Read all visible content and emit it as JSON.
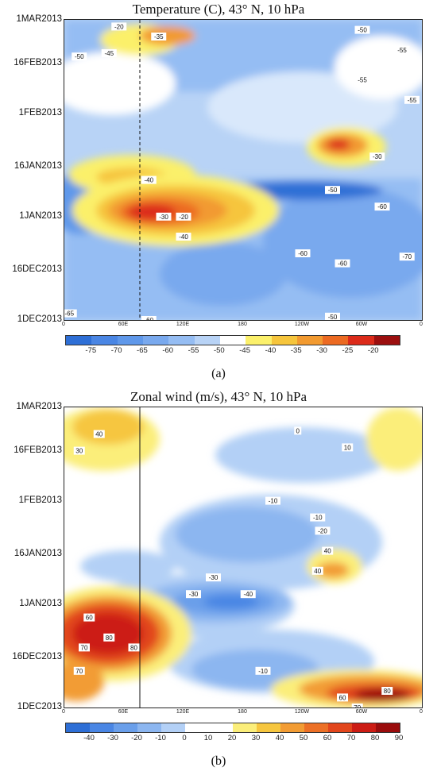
{
  "chart_data": [
    {
      "type": "heatmap",
      "title": "Temperature (C), 43° N, 10 hPa",
      "panel_label": "(a)",
      "y_tick_labels": [
        "1MAR2013",
        "16FEB2013",
        "1FEB2013",
        "16JAN2013",
        "1JAN2013",
        "16DEC2013",
        "1DEC2013"
      ],
      "x_tick_labels": [
        "0",
        "60E",
        "120E",
        "180",
        "120W",
        "60W",
        "0"
      ],
      "colorbar_labels": [
        "-75",
        "-70",
        "-65",
        "-60",
        "-55",
        "-50",
        "-45",
        "-40",
        "-35",
        "-30",
        "-25",
        "-20"
      ],
      "colorbar_colors": [
        "#2e6fd6",
        "#4a86e4",
        "#5f98ea",
        "#79a9ee",
        "#95bdf3",
        "#b8d3f6",
        "#ffffff",
        "#fbf06b",
        "#f6c53c",
        "#f29a30",
        "#ec6a22",
        "#dc2b1a",
        "#9c0f0f"
      ],
      "grid": false,
      "contour_labels": [
        {
          "text": "-20",
          "lon": 55,
          "date": "2013-02-27"
        },
        {
          "text": "-35",
          "lon": 95,
          "date": "2013-02-24"
        },
        {
          "text": "-50",
          "lon": 300,
          "date": "2013-02-26"
        },
        {
          "text": "-45",
          "lon": 45,
          "date": "2013-02-19"
        },
        {
          "text": "-50",
          "lon": 15,
          "date": "2013-02-18"
        },
        {
          "text": "-55",
          "lon": 340,
          "date": "2013-02-20"
        },
        {
          "text": "-55",
          "lon": 300,
          "date": "2013-02-11"
        },
        {
          "text": "-55",
          "lon": 350,
          "date": "2013-02-05"
        },
        {
          "text": "-30",
          "lon": 315,
          "date": "2013-01-19"
        },
        {
          "text": "-40",
          "lon": 85,
          "date": "2013-01-12"
        },
        {
          "text": "-50",
          "lon": 270,
          "date": "2013-01-09"
        },
        {
          "text": "-60",
          "lon": 320,
          "date": "2013-01-04"
        },
        {
          "text": "-20",
          "lon": 120,
          "date": "2013-01-01"
        },
        {
          "text": "-30",
          "lon": 100,
          "date": "2013-01-01"
        },
        {
          "text": "-40",
          "lon": 120,
          "date": "2012-12-26"
        },
        {
          "text": "-60",
          "lon": 240,
          "date": "2012-12-21"
        },
        {
          "text": "-70",
          "lon": 345,
          "date": "2012-12-20"
        },
        {
          "text": "-60",
          "lon": 280,
          "date": "2012-12-18"
        },
        {
          "text": "-65",
          "lon": 5,
          "date": "2012-12-03"
        },
        {
          "text": "-60",
          "lon": 85,
          "date": "2012-12-01"
        },
        {
          "text": "-50",
          "lon": 270,
          "date": "2012-12-02"
        }
      ]
    },
    {
      "type": "heatmap",
      "title": "Zonal wind (m/s), 43° N, 10 hPa",
      "panel_label": "(b)",
      "y_tick_labels": [
        "1MAR2013",
        "16FEB2013",
        "1FEB2013",
        "16JAN2013",
        "1JAN2013",
        "16DEC2013",
        "1DEC2013"
      ],
      "x_tick_labels": [
        "0",
        "60E",
        "120E",
        "180",
        "120W",
        "60W",
        "0"
      ],
      "colorbar_labels": [
        "-40",
        "-30",
        "-20",
        "-10",
        "0",
        "10",
        "20",
        "30",
        "40",
        "50",
        "60",
        "70",
        "80",
        "90"
      ],
      "colorbar_colors": [
        "#2e6fd6",
        "#4a86e4",
        "#6a9fea",
        "#8cb6f0",
        "#b3d0f6",
        "#ffffff",
        "#ffffff",
        "#fbee7a",
        "#f6c63f",
        "#f29c34",
        "#ec7026",
        "#e2461c",
        "#cc1c14",
        "#9a0c0c"
      ],
      "grid": false,
      "contour_labels": [
        {
          "text": "40",
          "lon": 35,
          "date": "2013-02-21"
        },
        {
          "text": "30",
          "lon": 15,
          "date": "2013-02-16"
        },
        {
          "text": "0",
          "lon": 235,
          "date": "2013-02-22"
        },
        {
          "text": "10",
          "lon": 285,
          "date": "2013-02-17"
        },
        {
          "text": "-10",
          "lon": 210,
          "date": "2013-02-01"
        },
        {
          "text": "-10",
          "lon": 255,
          "date": "2013-01-27"
        },
        {
          "text": "-20",
          "lon": 260,
          "date": "2013-01-23"
        },
        {
          "text": "40",
          "lon": 265,
          "date": "2013-01-17"
        },
        {
          "text": "40",
          "lon": 255,
          "date": "2013-01-11"
        },
        {
          "text": "-30",
          "lon": 150,
          "date": "2013-01-09"
        },
        {
          "text": "-40",
          "lon": 185,
          "date": "2013-01-04"
        },
        {
          "text": "-30",
          "lon": 130,
          "date": "2013-01-04"
        },
        {
          "text": "60",
          "lon": 25,
          "date": "2012-12-28"
        },
        {
          "text": "80",
          "lon": 45,
          "date": "2012-12-22"
        },
        {
          "text": "70",
          "lon": 20,
          "date": "2012-12-19"
        },
        {
          "text": "80",
          "lon": 70,
          "date": "2012-12-19"
        },
        {
          "text": "70",
          "lon": 15,
          "date": "2012-12-12"
        },
        {
          "text": "-10",
          "lon": 200,
          "date": "2012-12-12"
        },
        {
          "text": "80",
          "lon": 325,
          "date": "2012-12-06"
        },
        {
          "text": "70",
          "lon": 295,
          "date": "2012-12-01"
        },
        {
          "text": "60",
          "lon": 280,
          "date": "2012-12-04"
        }
      ]
    }
  ]
}
